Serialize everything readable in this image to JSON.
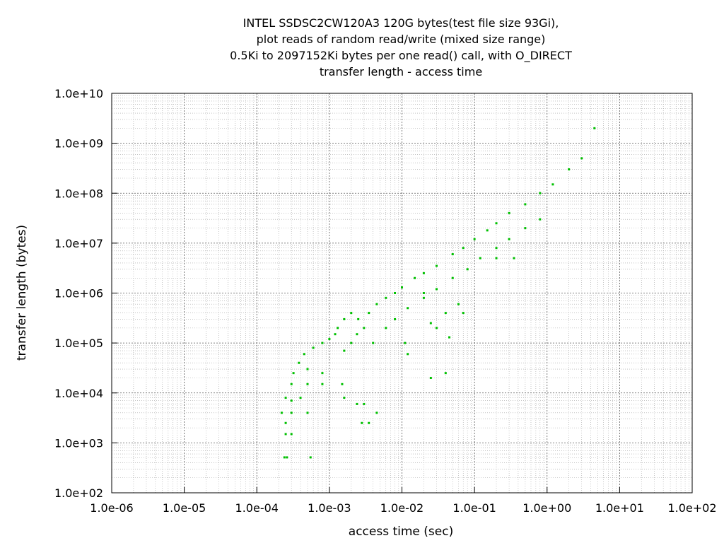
{
  "chart_data": {
    "type": "scatter",
    "title": [
      "INTEL SSDSC2CW120A3 120G bytes(test file size 93Gi),",
      "plot reads of random read/write (mixed size range)",
      "0.5Ki to 2097152Ki bytes per one read() call, with O_DIRECT",
      "transfer length - access time"
    ],
    "xlabel": "access time (sec)",
    "ylabel": "transfer length (bytes)",
    "x_scale": "log",
    "y_scale": "log",
    "xlim": [
      1e-06,
      100
    ],
    "ylim": [
      100,
      10000000000
    ],
    "x_ticks": [
      1e-06,
      1e-05,
      0.0001,
      0.001,
      0.01,
      0.1,
      1,
      10,
      100
    ],
    "x_tick_labels": [
      "1.0e-06",
      "1.0e-05",
      "1.0e-04",
      "1.0e-03",
      "1.0e-02",
      "1.0e-01",
      "1.0e+00",
      "1.0e+01",
      "1.0e+02"
    ],
    "y_ticks": [
      100,
      1000,
      10000,
      100000,
      1000000,
      10000000,
      100000000,
      1000000000,
      10000000000
    ],
    "y_tick_labels": [
      "1.0e+02",
      "1.0e+03",
      "1.0e+04",
      "1.0e+05",
      "1.0e+06",
      "1.0e+07",
      "1.0e+08",
      "1.0e+09",
      "1.0e+10"
    ],
    "grid": true,
    "point_color": "#00c000",
    "series": [
      {
        "values": [
          [
            0.00024,
            512
          ],
          [
            0.00026,
            512
          ],
          [
            0.00055,
            512
          ],
          [
            0.00025,
            1500
          ],
          [
            0.0003,
            1500
          ],
          [
            0.00025,
            2500
          ],
          [
            0.00022,
            4000
          ],
          [
            0.0003,
            4000
          ],
          [
            0.0005,
            4000
          ],
          [
            0.0003,
            7000
          ],
          [
            0.00025,
            8000
          ],
          [
            0.0004,
            8000
          ],
          [
            0.0016,
            8000
          ],
          [
            0.0003,
            15000
          ],
          [
            0.0005,
            15000
          ],
          [
            0.0008,
            15000
          ],
          [
            0.0015,
            15000
          ],
          [
            0.0028,
            2500
          ],
          [
            0.0035,
            2500
          ],
          [
            0.0024,
            6000
          ],
          [
            0.003,
            6000
          ],
          [
            0.0045,
            4000
          ],
          [
            0.00032,
            25000
          ],
          [
            0.00038,
            40000
          ],
          [
            0.0005,
            30000
          ],
          [
            0.0008,
            25000
          ],
          [
            0.00045,
            60000
          ],
          [
            0.0006,
            80000
          ],
          [
            0.0008,
            100000
          ],
          [
            0.001,
            120000
          ],
          [
            0.0012,
            150000
          ],
          [
            0.0013,
            200000
          ],
          [
            0.0016,
            300000
          ],
          [
            0.002,
            400000
          ],
          [
            0.0016,
            70000
          ],
          [
            0.002,
            100000
          ],
          [
            0.0024,
            150000
          ],
          [
            0.003,
            200000
          ],
          [
            0.0025,
            300000
          ],
          [
            0.0035,
            400000
          ],
          [
            0.0045,
            600000
          ],
          [
            0.006,
            800000
          ],
          [
            0.008,
            1000000
          ],
          [
            0.01,
            1300000
          ],
          [
            0.015,
            2000000
          ],
          [
            0.02,
            2500000
          ],
          [
            0.03,
            3500000
          ],
          [
            0.05,
            6000000
          ],
          [
            0.07,
            8000000
          ],
          [
            0.1,
            12000000
          ],
          [
            0.15,
            18000000
          ],
          [
            0.2,
            25000000
          ],
          [
            0.3,
            40000000
          ],
          [
            0.5,
            60000000
          ],
          [
            0.8,
            100000000
          ],
          [
            1.2,
            150000000
          ],
          [
            2,
            300000000
          ],
          [
            3,
            500000000
          ],
          [
            4.5,
            2000000000
          ],
          [
            0.004,
            100000
          ],
          [
            0.006,
            200000
          ],
          [
            0.008,
            300000
          ],
          [
            0.012,
            500000
          ],
          [
            0.02,
            800000
          ],
          [
            0.03,
            1200000
          ],
          [
            0.05,
            2000000
          ],
          [
            0.08,
            3000000
          ],
          [
            0.12,
            5000000
          ],
          [
            0.2,
            8000000
          ],
          [
            0.3,
            12000000
          ],
          [
            0.5,
            20000000
          ],
          [
            0.8,
            30000000
          ],
          [
            0.011,
            100000
          ],
          [
            0.012,
            60000
          ],
          [
            0.025,
            250000
          ],
          [
            0.03,
            200000
          ],
          [
            0.04,
            400000
          ],
          [
            0.045,
            130000
          ],
          [
            0.04,
            25000
          ],
          [
            0.06,
            600000
          ],
          [
            0.07,
            400000
          ],
          [
            0.025,
            20000
          ],
          [
            0.35,
            5000000
          ],
          [
            0.02,
            1000000
          ],
          [
            0.2,
            5000000
          ]
        ]
      }
    ]
  }
}
